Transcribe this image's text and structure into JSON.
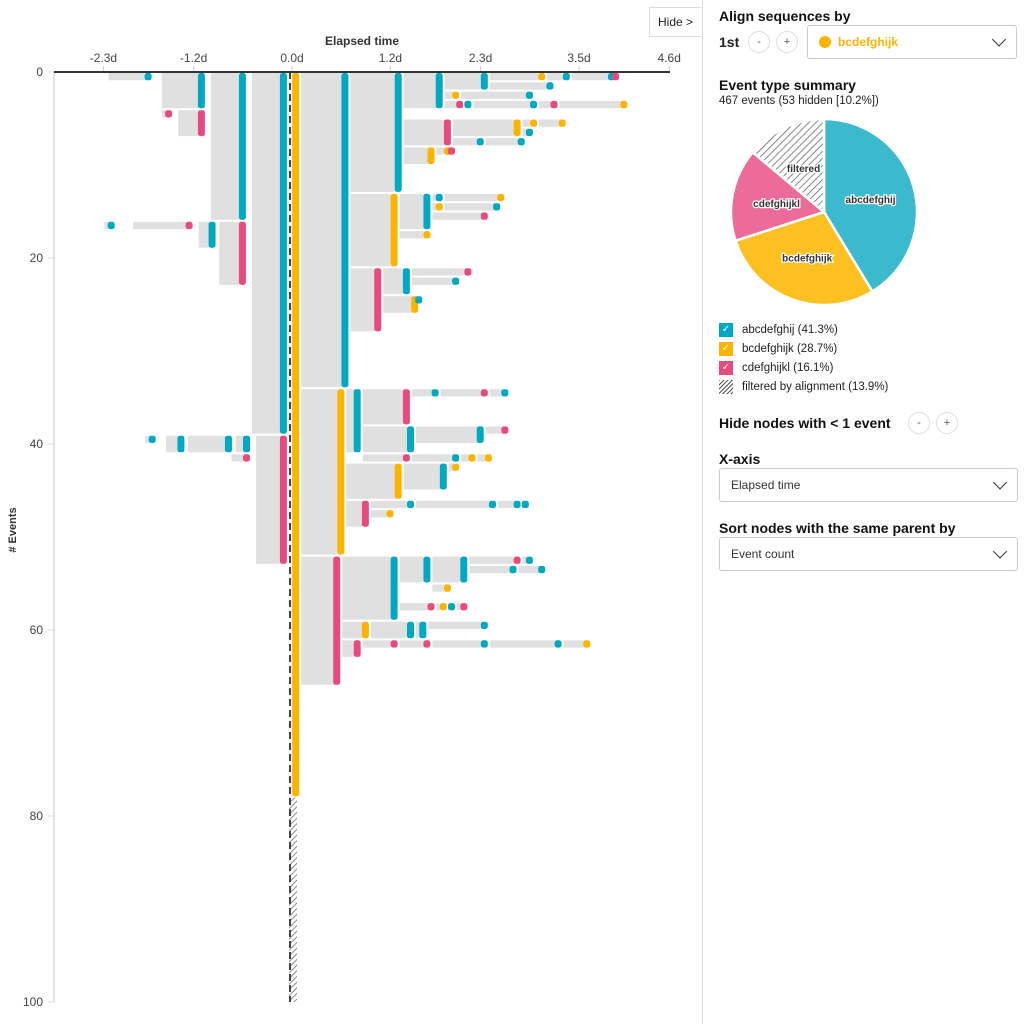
{
  "colors": {
    "abcdefghij": "#00a9c2",
    "bcdefghijk": "#fdb400",
    "cdefghijkl": "#e8497e",
    "node_bg": "#e0e0e0",
    "pie_abcdefghij": "#3cbacd",
    "pie_bcdefghijk": "#fdc021",
    "pie_cdefghijkl": "#ec6b98"
  },
  "hide_button": "Hide >",
  "panel": {
    "align_title": "Align sequences by",
    "ordinal": "1st",
    "minus": "-",
    "plus": "+",
    "align_event": "bcdefghijk",
    "summary_title": "Event type summary",
    "summary_sub": "467 events (53 hidden [10.2%])",
    "legend": [
      {
        "label": "abcdefghij (41.3%)",
        "checked": true
      },
      {
        "label": "bcdefghijk (28.7%)",
        "checked": true
      },
      {
        "label": "cdefghijkl (16.1%)",
        "checked": true
      },
      {
        "label": "filtered by alignment (13.9%)"
      }
    ],
    "hide_nodes_title": "Hide nodes with < 1 event",
    "xaxis_title": "X-axis",
    "xaxis_value": "Elapsed time",
    "sort_title": "Sort nodes with the same parent by",
    "sort_value": "Event count",
    "check": "✓"
  },
  "chart_data": [
    {
      "type": "icicle-timeline",
      "title": "Elapsed time",
      "xlabel": "Elapsed time",
      "ylabel": "# Events",
      "x_ticks": [
        -2.3,
        -1.2,
        0.0,
        1.2,
        2.3,
        3.5,
        4.6
      ],
      "x_tick_labels": [
        "-2.3d",
        "-1.2d",
        "0.0d",
        "1.2d",
        "2.3d",
        "3.5d",
        "4.6d"
      ],
      "xlim": [
        -2.8,
        4.6
      ],
      "y_ticks": [
        0,
        20,
        40,
        60,
        80,
        100
      ],
      "ylim": [
        0,
        100
      ],
      "alignment_line_x": 0.0,
      "filtered_range": [
        78,
        100
      ],
      "nodes": [
        {
          "type": "abcdefghij",
          "t0": -2.25,
          "t1": -1.7,
          "y0": 0,
          "y1": 1
        },
        {
          "type": "abcdefghij",
          "t0": -1.6,
          "t1": -1.05,
          "y0": 0,
          "y1": 4
        },
        {
          "type": "cdefghijkl",
          "t0": -1.6,
          "t1": -1.45,
          "y0": 4,
          "y1": 5
        },
        {
          "type": "cdefghijkl",
          "t0": -1.4,
          "t1": -1.05,
          "y0": 4,
          "y1": 7
        },
        {
          "type": "abcdefghij",
          "t0": -1.0,
          "t1": -0.55,
          "y0": 0,
          "y1": 16
        },
        {
          "type": "abcdefghij",
          "t0": -2.3,
          "t1": -2.15,
          "y0": 16,
          "y1": 17
        },
        {
          "type": "cdefghijkl",
          "t0": -1.95,
          "t1": -1.2,
          "y0": 16,
          "y1": 17
        },
        {
          "type": "abcdefghij",
          "t0": -1.15,
          "t1": -0.92,
          "y0": 16,
          "y1": 19
        },
        {
          "type": "cdefghijkl",
          "t0": -0.9,
          "t1": -0.55,
          "y0": 16,
          "y1": 23
        },
        {
          "type": "abcdefghij",
          "t0": -0.5,
          "t1": -0.05,
          "y0": 0,
          "y1": 39
        },
        {
          "type": "abcdefghij",
          "t0": -1.8,
          "t1": -1.65,
          "y0": 39,
          "y1": 40
        },
        {
          "type": "abcdefghij",
          "t0": -1.55,
          "t1": -1.3,
          "y0": 39,
          "y1": 41
        },
        {
          "type": "abcdefghij",
          "t0": -1.28,
          "t1": -0.72,
          "y0": 39,
          "y1": 41
        },
        {
          "type": "abcdefghij",
          "t0": -0.7,
          "t1": -0.5,
          "y0": 39,
          "y1": 41
        },
        {
          "type": "cdefghijkl",
          "t0": -0.75,
          "t1": -0.5,
          "y0": 41,
          "y1": 42
        },
        {
          "type": "cdefghijkl",
          "t0": -0.45,
          "t1": -0.05,
          "y0": 39,
          "y1": 53
        },
        {
          "type": "bcdefghijk",
          "t0": 0.0,
          "t1": 0.1,
          "y0": 0,
          "y1": 78
        }
      ]
    },
    {
      "type": "pie",
      "title": "Event type summary",
      "slices": [
        {
          "label": "abcdefghij",
          "value": 41.3
        },
        {
          "label": "bcdefghijk",
          "value": 28.7
        },
        {
          "label": "cdefghijkl",
          "value": 16.1
        },
        {
          "label": "filtered",
          "value": 13.9
        }
      ]
    }
  ]
}
